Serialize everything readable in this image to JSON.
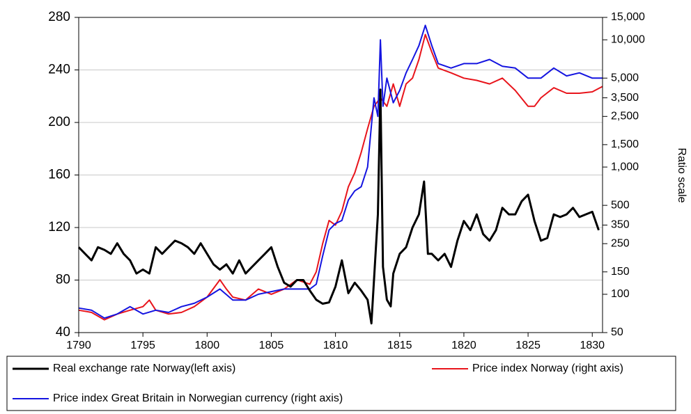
{
  "chart_data": {
    "type": "line",
    "y_label_right": "Ratio scale",
    "xlim": [
      1790,
      1830.8
    ],
    "xticks": [
      1790,
      1795,
      1800,
      1805,
      1810,
      1815,
      1820,
      1825,
      1830
    ],
    "ylim": [
      40,
      280
    ],
    "yticks": [
      40,
      80,
      120,
      160,
      200,
      240,
      280
    ],
    "grid": true,
    "y2lim": [
      50,
      15000
    ],
    "y2log": true,
    "y2ticks": [
      50,
      100,
      150,
      250,
      350,
      500,
      {
        "value": 1000,
        "label": "1,000"
      },
      {
        "value": 1500,
        "label": "1,500"
      },
      {
        "value": 2500,
        "label": "2,500"
      },
      {
        "value": 3500,
        "label": "3,500"
      },
      {
        "value": 5000,
        "label": "5,000"
      },
      {
        "value": 10000,
        "label": "10,000"
      },
      {
        "value": 15000,
        "label": "15,000"
      }
    ],
    "series": [
      {
        "name": "Real exchange rate Norway(left axis)",
        "color": "#000000",
        "x": [
          1790,
          1790.5,
          1791,
          1791.5,
          1792,
          1792.5,
          1793,
          1793.5,
          1794,
          1794.5,
          1795,
          1795.5,
          1796,
          1796.5,
          1797,
          1797.5,
          1798,
          1798.5,
          1799,
          1799.5,
          1800,
          1800.5,
          1801,
          1801.5,
          1802,
          1802.5,
          1803,
          1803.5,
          1804,
          1804.5,
          1805,
          1805.5,
          1806,
          1806.5,
          1807,
          1807.5,
          1808,
          1808.5,
          1809,
          1809.5,
          1810,
          1810.5,
          1811,
          1811.5,
          1812,
          1812.5,
          1812.8,
          1813,
          1813.3,
          1813.5,
          1813.7,
          1814,
          1814.3,
          1814.5,
          1815,
          1815.5,
          1816,
          1816.5,
          1816.9,
          1817.2,
          1817.5,
          1818,
          1818.5,
          1819,
          1819.5,
          1820,
          1820.5,
          1821,
          1821.5,
          1822,
          1822.5,
          1823,
          1823.5,
          1824,
          1824.5,
          1825,
          1825.5,
          1826,
          1826.5,
          1827,
          1827.5,
          1828,
          1828.5,
          1829,
          1829.5,
          1830,
          1830.5
        ],
        "values": [
          105,
          100,
          95,
          105,
          103,
          100,
          108,
          100,
          95,
          85,
          88,
          85,
          105,
          100,
          105,
          110,
          108,
          105,
          100,
          108,
          100,
          92,
          88,
          92,
          85,
          95,
          85,
          90,
          95,
          100,
          105,
          90,
          78,
          75,
          80,
          80,
          72,
          65,
          62,
          63,
          75,
          95,
          70,
          78,
          72,
          65,
          47,
          80,
          130,
          225,
          90,
          65,
          60,
          85,
          100,
          105,
          120,
          130,
          155,
          100,
          100,
          95,
          100,
          90,
          110,
          125,
          118,
          130,
          115,
          110,
          118,
          135,
          130,
          130,
          140,
          145,
          125,
          110,
          112,
          130,
          128,
          130,
          135,
          128,
          130,
          132,
          118
        ]
      },
      {
        "name": "Price index Norway (right axis)",
        "color": "#e8141b",
        "axis": "y2",
        "x": [
          1790,
          1791,
          1792,
          1793,
          1794,
          1795,
          1795.5,
          1796,
          1797,
          1798,
          1799,
          1800,
          1801,
          1801.5,
          1802,
          1803,
          1804,
          1805,
          1806,
          1807,
          1808,
          1808.5,
          1809,
          1809.5,
          1810,
          1810.5,
          1811,
          1811.5,
          1812,
          1812.5,
          1813,
          1813.5,
          1814,
          1814.5,
          1815,
          1815.5,
          1816,
          1816.5,
          1817,
          1817.5,
          1818,
          1819,
          1820,
          1821,
          1822,
          1823,
          1824,
          1825,
          1825.5,
          1826,
          1827,
          1828,
          1829,
          1830,
          1830.8
        ],
        "values": [
          75,
          72,
          63,
          70,
          75,
          80,
          90,
          75,
          70,
          72,
          80,
          95,
          130,
          110,
          95,
          90,
          110,
          100,
          110,
          130,
          120,
          150,
          250,
          380,
          350,
          450,
          700,
          900,
          1300,
          2000,
          3000,
          3500,
          3000,
          4500,
          3000,
          4500,
          5000,
          7000,
          11000,
          8000,
          6000,
          5500,
          5000,
          4800,
          4500,
          5000,
          4000,
          3000,
          3000,
          3500,
          4200,
          3800,
          3800,
          3900,
          4300
        ]
      },
      {
        "name": "Price index Great Britain in Norwegian currency (right axis)",
        "color": "#1414e0",
        "axis": "y2",
        "x": [
          1790,
          1791,
          1792,
          1793,
          1794,
          1795,
          1796,
          1797,
          1798,
          1799,
          1800,
          1801,
          1802,
          1803,
          1804,
          1805,
          1806,
          1807,
          1808,
          1808.5,
          1809,
          1809.5,
          1810,
          1810.5,
          1811,
          1811.5,
          1812,
          1812.5,
          1813,
          1813.3,
          1813.5,
          1813.7,
          1814,
          1814.5,
          1815,
          1815.5,
          1816,
          1816.5,
          1817,
          1817.5,
          1818,
          1819,
          1820,
          1821,
          1822,
          1823,
          1824,
          1825,
          1826,
          1827,
          1828,
          1829,
          1830,
          1830.8
        ],
        "values": [
          78,
          75,
          65,
          70,
          80,
          70,
          75,
          72,
          80,
          85,
          95,
          110,
          90,
          90,
          100,
          105,
          110,
          110,
          110,
          120,
          200,
          320,
          360,
          380,
          550,
          650,
          700,
          1000,
          3500,
          2500,
          10000,
          3000,
          5000,
          3200,
          4000,
          5500,
          7000,
          9000,
          13000,
          9000,
          6500,
          6000,
          6500,
          6500,
          7000,
          6200,
          6000,
          5000,
          5000,
          6000,
          5200,
          5500,
          5000,
          5000
        ]
      }
    ]
  }
}
